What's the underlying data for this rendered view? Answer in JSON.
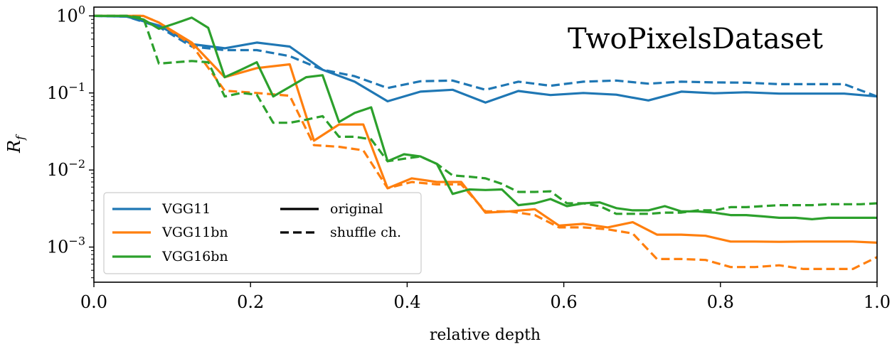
{
  "chart_data": {
    "type": "line",
    "title": "TwoPixelsDataset",
    "xlabel": "relative depth",
    "ylabel": "R",
    "ylabel_subscript": "f",
    "xscale": "linear",
    "yscale": "log",
    "xlim": [
      0.0,
      1.0
    ],
    "ylim": [
      0.00035,
      1.3
    ],
    "xticks": [
      0.0,
      0.2,
      0.4,
      0.6,
      0.8,
      1.0
    ],
    "xtick_labels": [
      "0.0",
      "0.2",
      "0.4",
      "0.6",
      "0.8",
      "1.0"
    ],
    "yticks": [
      {
        "value": 1,
        "base": "10",
        "exp": "0"
      },
      {
        "value": 0.1,
        "base": "10",
        "exp": "−1"
      },
      {
        "value": 0.01,
        "base": "10",
        "exp": "−2"
      },
      {
        "value": 0.001,
        "base": "10",
        "exp": "−3"
      }
    ],
    "grid": false,
    "legend_position": "lower-left",
    "legend": {
      "models": [
        {
          "label": "VGG11",
          "color": "#1f77b4"
        },
        {
          "label": "VGG11bn",
          "color": "#ff7f0e"
        },
        {
          "label": "VGG16bn",
          "color": "#2ca02c"
        }
      ],
      "styles": [
        {
          "label": "original",
          "dash": "solid"
        },
        {
          "label": "shuffle ch.",
          "dash": "dashed"
        }
      ]
    },
    "series": [
      {
        "name": "VGG11 original",
        "model": "VGG11",
        "variant": "original",
        "color": "#1f77b4",
        "dash": "solid",
        "x": [
          0.0,
          0.042,
          0.083,
          0.125,
          0.167,
          0.208,
          0.25,
          0.292,
          0.333,
          0.375,
          0.417,
          0.458,
          0.5,
          0.542,
          0.583,
          0.625,
          0.667,
          0.708,
          0.75,
          0.792,
          0.833,
          0.875,
          0.917,
          0.958,
          1.0
        ],
        "y": [
          1.0,
          0.98,
          0.75,
          0.43,
          0.38,
          0.45,
          0.4,
          0.2,
          0.14,
          0.078,
          0.104,
          0.11,
          0.075,
          0.106,
          0.094,
          0.1,
          0.095,
          0.08,
          0.104,
          0.099,
          0.102,
          0.098,
          0.098,
          0.098,
          0.09
        ]
      },
      {
        "name": "VGG11 shuffle ch.",
        "model": "VGG11",
        "variant": "shuffle ch.",
        "color": "#1f77b4",
        "dash": "dashed",
        "x": [
          0.0,
          0.042,
          0.083,
          0.125,
          0.167,
          0.208,
          0.25,
          0.292,
          0.333,
          0.375,
          0.417,
          0.458,
          0.5,
          0.542,
          0.583,
          0.625,
          0.667,
          0.708,
          0.75,
          0.792,
          0.833,
          0.875,
          0.917,
          0.958,
          1.0
        ],
        "y": [
          1.0,
          0.98,
          0.72,
          0.4,
          0.36,
          0.36,
          0.3,
          0.2,
          0.165,
          0.116,
          0.142,
          0.145,
          0.11,
          0.14,
          0.124,
          0.14,
          0.145,
          0.132,
          0.14,
          0.137,
          0.136,
          0.13,
          0.13,
          0.13,
          0.09
        ]
      },
      {
        "name": "VGG11bn original",
        "model": "VGG11bn",
        "variant": "original",
        "color": "#ff7f0e",
        "dash": "solid",
        "x": [
          0.0,
          0.042,
          0.063,
          0.083,
          0.125,
          0.167,
          0.208,
          0.25,
          0.281,
          0.313,
          0.344,
          0.375,
          0.406,
          0.438,
          0.469,
          0.5,
          0.531,
          0.563,
          0.594,
          0.625,
          0.656,
          0.688,
          0.719,
          0.75,
          0.781,
          0.813,
          0.844,
          0.875,
          0.906,
          0.938,
          0.969,
          1.0
        ],
        "y": [
          1.0,
          1.0,
          1.0,
          0.82,
          0.45,
          0.16,
          0.21,
          0.235,
          0.024,
          0.039,
          0.039,
          0.0058,
          0.0078,
          0.007,
          0.007,
          0.0028,
          0.0029,
          0.0031,
          0.0019,
          0.002,
          0.0018,
          0.0021,
          0.00145,
          0.00145,
          0.0014,
          0.00118,
          0.00118,
          0.00117,
          0.00118,
          0.00118,
          0.00118,
          0.00114
        ]
      },
      {
        "name": "VGG11bn shuffle ch.",
        "model": "VGG11bn",
        "variant": "shuffle ch.",
        "color": "#ff7f0e",
        "dash": "dashed",
        "x": [
          0.0,
          0.042,
          0.063,
          0.083,
          0.125,
          0.167,
          0.208,
          0.25,
          0.281,
          0.313,
          0.344,
          0.375,
          0.406,
          0.438,
          0.469,
          0.5,
          0.531,
          0.563,
          0.594,
          0.625,
          0.656,
          0.688,
          0.719,
          0.75,
          0.781,
          0.813,
          0.844,
          0.875,
          0.906,
          0.938,
          0.969,
          1.0
        ],
        "y": [
          1.0,
          1.0,
          1.0,
          0.82,
          0.42,
          0.107,
          0.1,
          0.092,
          0.021,
          0.02,
          0.018,
          0.0058,
          0.007,
          0.0065,
          0.0065,
          0.0029,
          0.0029,
          0.0026,
          0.0018,
          0.0018,
          0.0017,
          0.0015,
          0.0007,
          0.0007,
          0.00068,
          0.00055,
          0.00055,
          0.00058,
          0.00052,
          0.00052,
          0.00052,
          0.00074
        ]
      },
      {
        "name": "VGG16bn original",
        "model": "VGG16bn",
        "variant": "original",
        "color": "#2ca02c",
        "dash": "solid",
        "x": [
          0.0,
          0.021,
          0.042,
          0.063,
          0.083,
          0.104,
          0.125,
          0.146,
          0.167,
          0.188,
          0.208,
          0.229,
          0.25,
          0.271,
          0.292,
          0.313,
          0.333,
          0.354,
          0.375,
          0.396,
          0.417,
          0.438,
          0.458,
          0.479,
          0.5,
          0.521,
          0.542,
          0.563,
          0.583,
          0.604,
          0.625,
          0.646,
          0.667,
          0.688,
          0.708,
          0.729,
          0.75,
          0.771,
          0.792,
          0.813,
          0.833,
          0.854,
          0.875,
          0.896,
          0.917,
          0.938,
          0.958,
          0.979,
          1.0
        ],
        "y": [
          1.0,
          1.0,
          1.0,
          0.9,
          0.68,
          0.8,
          0.95,
          0.7,
          0.16,
          0.2,
          0.25,
          0.09,
          0.12,
          0.16,
          0.17,
          0.042,
          0.055,
          0.065,
          0.013,
          0.016,
          0.015,
          0.012,
          0.0049,
          0.0056,
          0.0055,
          0.0056,
          0.0035,
          0.0037,
          0.0042,
          0.0034,
          0.0037,
          0.0038,
          0.0032,
          0.003,
          0.003,
          0.0034,
          0.0029,
          0.0029,
          0.0028,
          0.0026,
          0.0026,
          0.0025,
          0.0024,
          0.0024,
          0.0023,
          0.0024,
          0.0024,
          0.0024,
          0.0024
        ]
      },
      {
        "name": "VGG16bn shuffle ch.",
        "model": "VGG16bn",
        "variant": "shuffle ch.",
        "color": "#2ca02c",
        "dash": "dashed",
        "x": [
          0.0,
          0.021,
          0.042,
          0.063,
          0.083,
          0.104,
          0.125,
          0.146,
          0.167,
          0.188,
          0.208,
          0.229,
          0.25,
          0.271,
          0.292,
          0.313,
          0.333,
          0.354,
          0.375,
          0.396,
          0.417,
          0.438,
          0.458,
          0.479,
          0.5,
          0.521,
          0.542,
          0.563,
          0.583,
          0.604,
          0.625,
          0.646,
          0.667,
          0.688,
          0.708,
          0.729,
          0.75,
          0.771,
          0.792,
          0.813,
          0.833,
          0.854,
          0.875,
          0.896,
          0.917,
          0.938,
          0.958,
          0.979,
          1.0
        ],
        "y": [
          1.0,
          1.0,
          1.0,
          0.95,
          0.24,
          0.25,
          0.26,
          0.25,
          0.09,
          0.1,
          0.095,
          0.041,
          0.041,
          0.045,
          0.05,
          0.027,
          0.027,
          0.025,
          0.013,
          0.014,
          0.015,
          0.012,
          0.0085,
          0.0082,
          0.0078,
          0.0066,
          0.0052,
          0.0052,
          0.0053,
          0.0037,
          0.0037,
          0.0034,
          0.0027,
          0.0027,
          0.0027,
          0.0028,
          0.0028,
          0.003,
          0.003,
          0.0033,
          0.0033,
          0.0034,
          0.0035,
          0.0035,
          0.0035,
          0.0036,
          0.0036,
          0.0036,
          0.0037
        ]
      }
    ]
  }
}
